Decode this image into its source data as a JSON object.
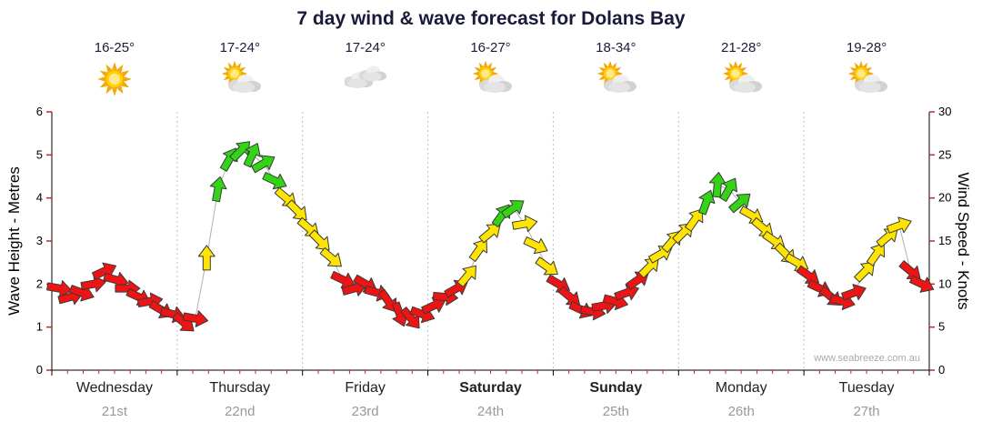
{
  "title": "7 day wind & wave forecast for Dolans Bay",
  "watermark": "www.seabreeze.com.au",
  "axes": {
    "left_label": "Wave Height - Metres",
    "right_label": "Wind Speed - Knots"
  },
  "days": [
    {
      "temp": "16-25°",
      "icon": "sunny",
      "name": "Wednesday",
      "date": "21st",
      "bold": false
    },
    {
      "temp": "17-24°",
      "icon": "sun-cloud",
      "name": "Thursday",
      "date": "22nd",
      "bold": false
    },
    {
      "temp": "17-24°",
      "icon": "cloudy",
      "name": "Friday",
      "date": "23rd",
      "bold": false
    },
    {
      "temp": "16-27°",
      "icon": "sun-cloud",
      "name": "Saturday",
      "date": "24th",
      "bold": true
    },
    {
      "temp": "18-34°",
      "icon": "sun-cloud",
      "name": "Sunday",
      "date": "25th",
      "bold": true
    },
    {
      "temp": "21-28°",
      "icon": "sun-cloud",
      "name": "Monday",
      "date": "26th",
      "bold": false
    },
    {
      "temp": "19-28°",
      "icon": "sun-cloud",
      "name": "Tuesday",
      "date": "27th",
      "bold": false
    }
  ],
  "colors": {
    "red": "#ef1414",
    "yellow": "#ffe400",
    "green": "#33d316",
    "outline": "#3a3a3a",
    "title": "#1a1a3a",
    "grid": "#c0c0c0",
    "axis": "#000000",
    "tick_red": "#cc2222",
    "date": "#999999",
    "watermark": "#aaaaaa",
    "line": "#b0b0b0"
  },
  "chart_data": {
    "type": "line",
    "subtype": "wind-arrow-forecast",
    "title": "7 day wind & wave forecast for Dolans Bay",
    "categories": [
      "Wednesday 21st",
      "Thursday 22nd",
      "Friday 23rd",
      "Saturday 24th",
      "Sunday 25th",
      "Monday 26th",
      "Tuesday 27th"
    ],
    "y_left_axis": {
      "label": "Wave Height - Metres",
      "min": 0,
      "max": 6,
      "ticks": [
        0,
        1,
        2,
        3,
        4,
        5,
        6
      ]
    },
    "y_right_axis": {
      "label": "Wind Speed - Knots",
      "min": 0,
      "max": 30,
      "ticks": [
        0,
        5,
        10,
        15,
        20,
        25,
        30
      ]
    },
    "legend": "arrow color encodes wind strength: r=light(red), y=moderate(yellow), g=fresh(green)",
    "point_format": [
      "wind_knots",
      "direction_deg_from_east_cw",
      "color"
    ],
    "points_per_day": 11,
    "points": [
      [
        9.5,
        10,
        "r"
      ],
      [
        8.5,
        -15,
        "r"
      ],
      [
        9,
        20,
        "r"
      ],
      [
        10,
        -10,
        "r"
      ],
      [
        11.5,
        -25,
        "r"
      ],
      [
        10.5,
        15,
        "r"
      ],
      [
        9.5,
        0,
        "r"
      ],
      [
        8.5,
        25,
        "r"
      ],
      [
        8,
        -10,
        "r"
      ],
      [
        7,
        30,
        "r"
      ],
      [
        6.5,
        15,
        "r"
      ],
      [
        5.5,
        40,
        "r"
      ],
      [
        6,
        10,
        "r"
      ],
      [
        13,
        -90,
        "y"
      ],
      [
        21,
        -80,
        "g"
      ],
      [
        24.5,
        -60,
        "g"
      ],
      [
        25.5,
        -45,
        "g"
      ],
      [
        25,
        -65,
        "g"
      ],
      [
        24,
        -30,
        "g"
      ],
      [
        22,
        25,
        "g"
      ],
      [
        20,
        40,
        "y"
      ],
      [
        18.5,
        45,
        "y"
      ],
      [
        16.5,
        40,
        "y"
      ],
      [
        15,
        45,
        "y"
      ],
      [
        13,
        40,
        "y"
      ],
      [
        10.5,
        25,
        "r"
      ],
      [
        9.5,
        -15,
        "r"
      ],
      [
        10,
        30,
        "r"
      ],
      [
        9,
        15,
        "r"
      ],
      [
        8,
        55,
        "r"
      ],
      [
        6.5,
        70,
        "r"
      ],
      [
        6,
        50,
        "r"
      ],
      [
        6.5,
        20,
        "r"
      ],
      [
        7.5,
        -25,
        "r"
      ],
      [
        8.5,
        5,
        "r"
      ],
      [
        9.5,
        -30,
        "r"
      ],
      [
        11,
        -50,
        "y"
      ],
      [
        14,
        -55,
        "y"
      ],
      [
        16,
        -40,
        "y"
      ],
      [
        18,
        -55,
        "g"
      ],
      [
        18.8,
        -35,
        "g"
      ],
      [
        17,
        -10,
        "y"
      ],
      [
        14.5,
        25,
        "y"
      ],
      [
        12,
        35,
        "y"
      ],
      [
        10,
        30,
        "r"
      ],
      [
        8.5,
        40,
        "r"
      ],
      [
        7,
        25,
        "r"
      ],
      [
        6.8,
        10,
        "r"
      ],
      [
        7.5,
        -10,
        "r"
      ],
      [
        8,
        15,
        "r"
      ],
      [
        9,
        -20,
        "r"
      ],
      [
        10.5,
        -35,
        "r"
      ],
      [
        12,
        -45,
        "y"
      ],
      [
        13.5,
        -30,
        "y"
      ],
      [
        15,
        -50,
        "y"
      ],
      [
        16,
        -45,
        "y"
      ],
      [
        17.5,
        -55,
        "y"
      ],
      [
        19.5,
        -70,
        "g"
      ],
      [
        21.5,
        -85,
        "g"
      ],
      [
        21,
        -60,
        "g"
      ],
      [
        19.5,
        -40,
        "g"
      ],
      [
        18,
        30,
        "y"
      ],
      [
        16.5,
        40,
        "y"
      ],
      [
        15,
        35,
        "y"
      ],
      [
        13.5,
        45,
        "y"
      ],
      [
        12.5,
        30,
        "y"
      ],
      [
        11,
        35,
        "r"
      ],
      [
        9.5,
        25,
        "r"
      ],
      [
        8.5,
        40,
        "r"
      ],
      [
        8,
        15,
        "r"
      ],
      [
        9,
        -20,
        "r"
      ],
      [
        11.5,
        -45,
        "y"
      ],
      [
        13.5,
        -55,
        "y"
      ],
      [
        15.5,
        -40,
        "y"
      ],
      [
        16.8,
        -20,
        "y"
      ],
      [
        11.5,
        40,
        "r"
      ],
      [
        10,
        25,
        "r"
      ]
    ]
  }
}
